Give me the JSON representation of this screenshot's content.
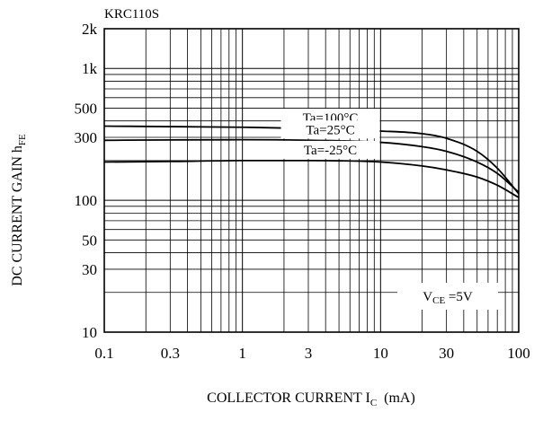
{
  "chart_data": {
    "type": "line",
    "title": "KRC110S",
    "xlabel": {
      "main": "COLLECTOR CURRENT I",
      "sub": "C",
      "unit": "(mA)"
    },
    "ylabel": {
      "main": "DC CURRENT GAIN h",
      "sub": "FE"
    },
    "x_scale": "log",
    "y_scale": "log",
    "xlim": [
      0.1,
      100
    ],
    "ylim": [
      10,
      2000
    ],
    "x_tick_labels": [
      {
        "v": 0.1,
        "label": "0.1"
      },
      {
        "v": 0.3,
        "label": "0.3"
      },
      {
        "v": 1,
        "label": "1"
      },
      {
        "v": 3,
        "label": "3"
      },
      {
        "v": 10,
        "label": "10"
      },
      {
        "v": 30,
        "label": "30"
      },
      {
        "v": 100,
        "label": "100"
      }
    ],
    "y_tick_labels": [
      {
        "v": 10,
        "label": "10"
      },
      {
        "v": 30,
        "label": "30"
      },
      {
        "v": 50,
        "label": "50"
      },
      {
        "v": 100,
        "label": "100"
      },
      {
        "v": 300,
        "label": "300"
      },
      {
        "v": 500,
        "label": "500"
      },
      {
        "v": 1000,
        "label": "1k"
      },
      {
        "v": 2000,
        "label": "2k"
      }
    ],
    "grid": true,
    "condition": {
      "main": "V",
      "sub": "CE",
      "rest": " =5V"
    },
    "series": [
      {
        "name": "Ta=100°C",
        "x": [
          0.1,
          0.3,
          1,
          3,
          10,
          20,
          30,
          50,
          70,
          100
        ],
        "y": [
          365,
          362,
          358,
          350,
          335,
          320,
          295,
          235,
          175,
          112
        ]
      },
      {
        "name": "Ta=25°C",
        "x": [
          0.1,
          0.3,
          1,
          3,
          10,
          20,
          30,
          50,
          70,
          100
        ],
        "y": [
          285,
          287,
          288,
          285,
          275,
          255,
          235,
          195,
          160,
          115
        ]
      },
      {
        "name": "Ta=-25°C",
        "x": [
          0.1,
          0.3,
          1,
          3,
          10,
          20,
          30,
          50,
          70,
          100
        ],
        "y": [
          195,
          197,
          200,
          200,
          195,
          182,
          170,
          150,
          130,
          105
        ]
      }
    ]
  }
}
